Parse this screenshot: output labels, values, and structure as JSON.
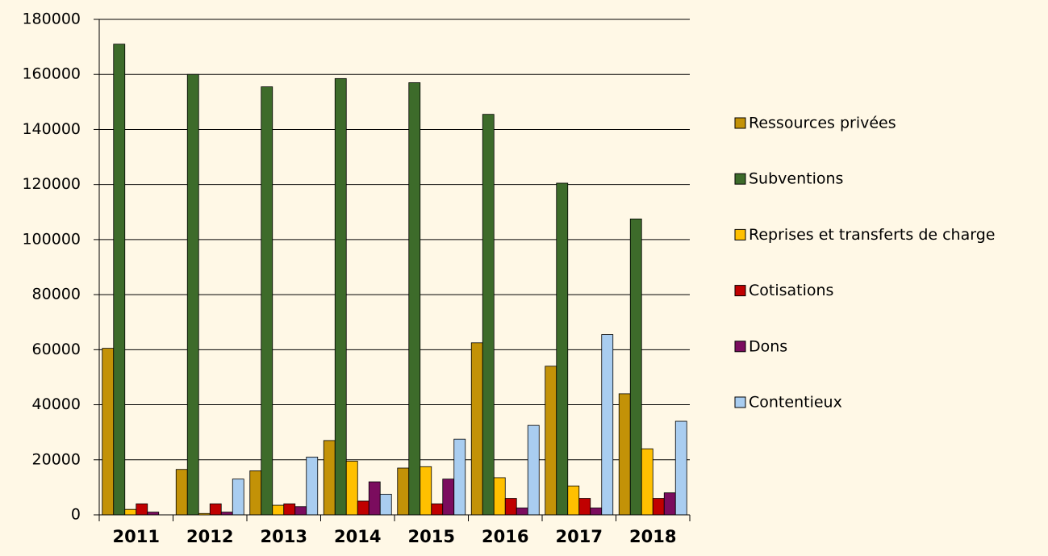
{
  "chart_data": {
    "type": "bar",
    "categories": [
      "2011",
      "2012",
      "2013",
      "2014",
      "2015",
      "2016",
      "2017",
      "2018"
    ],
    "series": [
      {
        "name": "Ressources privées",
        "color": "#c39207",
        "values": [
          60500,
          16500,
          16000,
          27000,
          17000,
          62500,
          54000,
          44000
        ]
      },
      {
        "name": "Subventions",
        "color": "#3d6b2a",
        "values": [
          171000,
          160000,
          155500,
          158500,
          157000,
          145500,
          120500,
          107500
        ]
      },
      {
        "name": "Reprises et transferts de charge",
        "color": "#ffc000",
        "values": [
          2000,
          500,
          3500,
          19500,
          17500,
          13500,
          10500,
          24000
        ]
      },
      {
        "name": "Cotisations",
        "color": "#c00000",
        "values": [
          4000,
          4000,
          4000,
          5000,
          4000,
          6000,
          6000,
          6000
        ]
      },
      {
        "name": "Dons",
        "color": "#7b0c5e",
        "values": [
          1000,
          1000,
          3000,
          12000,
          13000,
          2500,
          2500,
          8000
        ]
      },
      {
        "name": "Contentieux",
        "color": "#a9cdf0",
        "values": [
          0,
          13000,
          21000,
          7500,
          27500,
          32500,
          65500,
          34000
        ]
      }
    ],
    "ylim": [
      0,
      180000
    ],
    "yticks": [
      0,
      20000,
      40000,
      60000,
      80000,
      100000,
      120000,
      140000,
      160000,
      180000
    ],
    "grid": true,
    "legend": "right"
  }
}
